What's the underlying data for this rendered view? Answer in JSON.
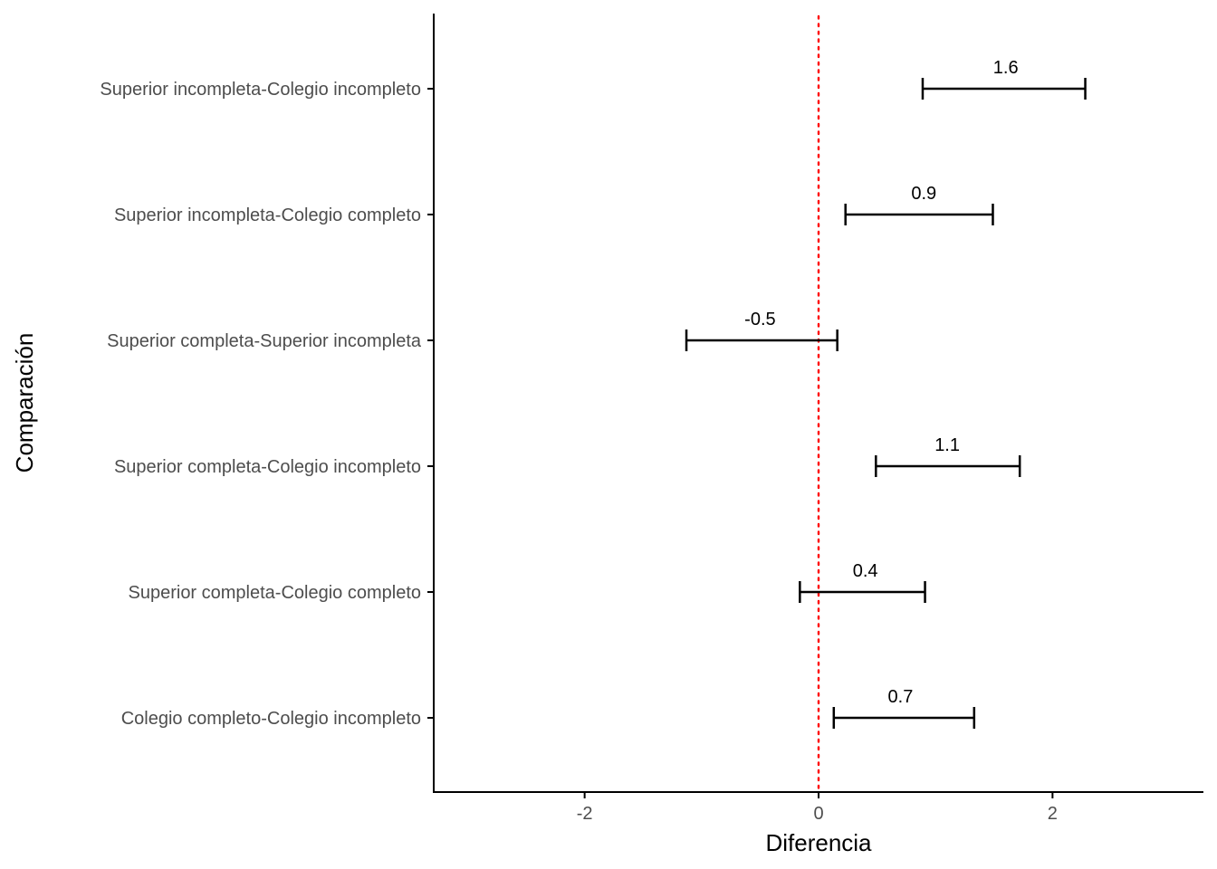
{
  "chart_data": {
    "type": "errorbar",
    "title": "",
    "xlabel": "Diferencia",
    "ylabel": "Comparación",
    "xlim": [
      -3.29,
      3.29
    ],
    "x_ticks": [
      -2,
      0,
      2
    ],
    "x_tick_labels": [
      "-2",
      "0",
      "2"
    ],
    "reference_line": {
      "x": 0,
      "style": "dotted",
      "color": "#ff0000"
    },
    "grid": false,
    "legend": "none",
    "categories": [
      "Superior incompleta-Colegio incompleto",
      "Superior incompleta-Colegio completo",
      "Superior completa-Superior incompleta",
      "Superior completa-Colegio incompleto",
      "Superior completa-Colegio completo",
      "Colegio completo-Colegio incompleto"
    ],
    "estimates": [
      1.6,
      0.9,
      -0.5,
      1.1,
      0.4,
      0.7
    ],
    "estimate_labels": [
      "1.6",
      "0.9",
      "-0.5",
      "1.1",
      "0.4",
      "0.7"
    ],
    "lower": [
      0.89,
      0.23,
      -1.13,
      0.49,
      -0.16,
      0.13
    ],
    "upper": [
      2.28,
      1.49,
      0.16,
      1.72,
      0.91,
      1.33
    ],
    "colors": {
      "bars": "#000000",
      "reference": "#ff0000",
      "axis": "#000000",
      "tick_text": "#4d4d4d"
    }
  }
}
